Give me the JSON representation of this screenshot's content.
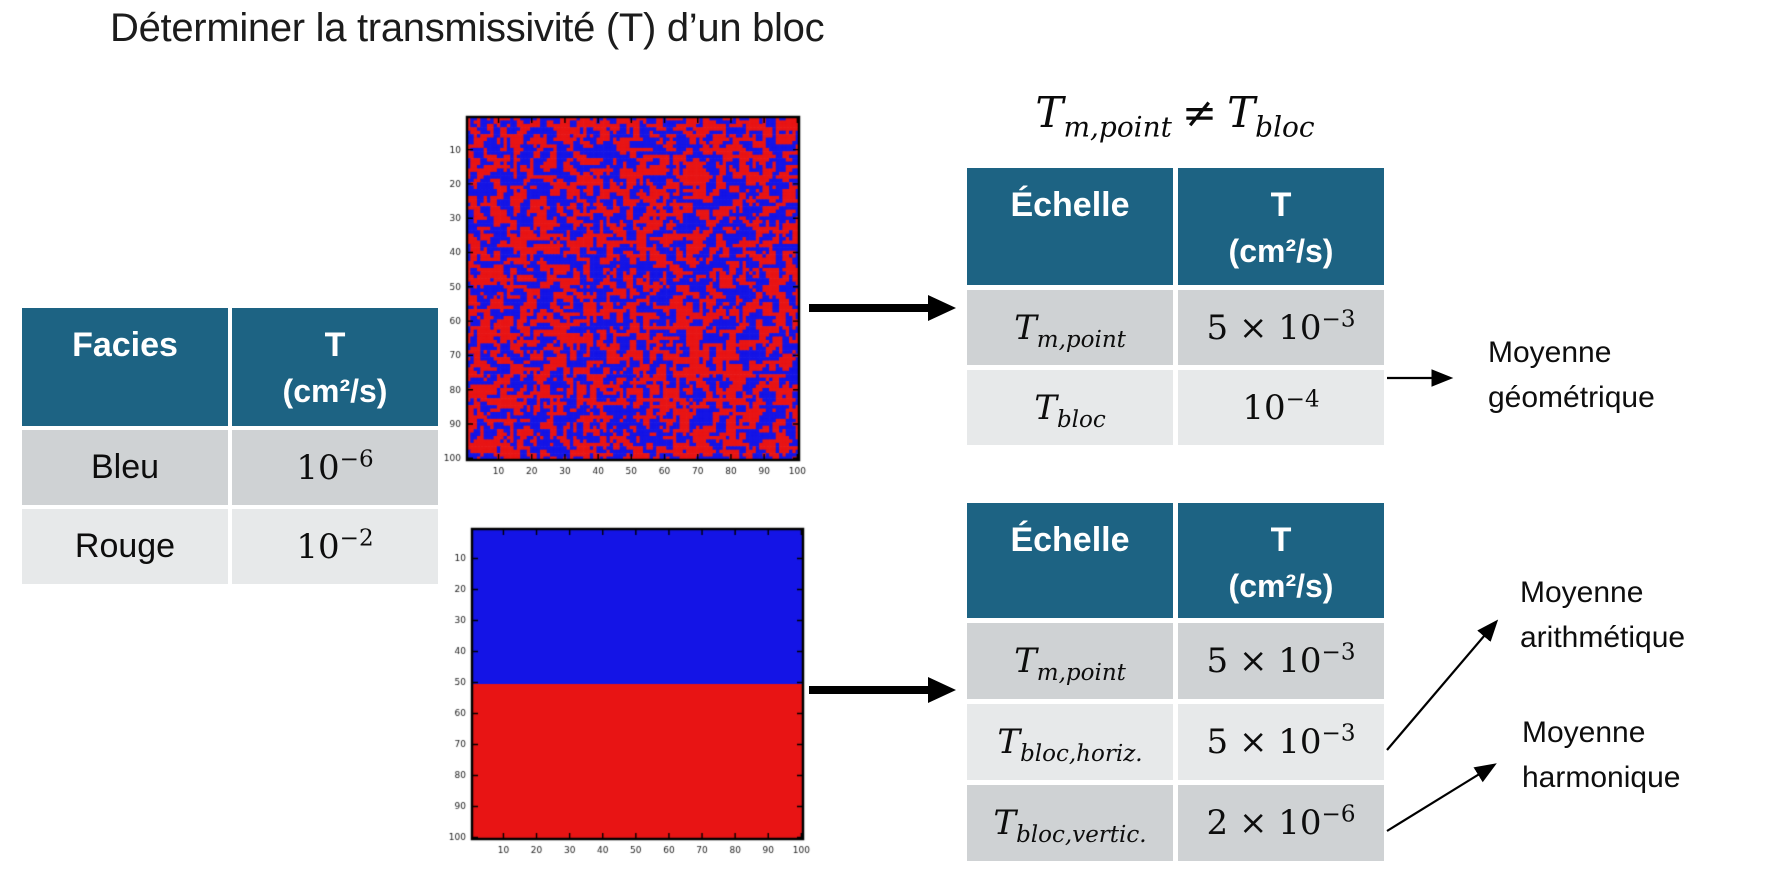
{
  "title": "Déterminer la transmissivité (T) d’un bloc",
  "colors": {
    "table_header_teal": "#1D6383",
    "table_row_dark": "#CFD2D4",
    "table_row_light": "#E7E9EA",
    "facies_bleu": "#1414E6",
    "facies_rouge": "#E81414",
    "arrow_black": "#000000"
  },
  "facies_table": {
    "col1_header": "Facies",
    "col2_header_line1": "T",
    "col2_header_line2": "(cm²/s)",
    "rows": [
      {
        "label": "Bleu",
        "value": {
          "mant": "10",
          "exp": "−6"
        }
      },
      {
        "label": "Rouge",
        "value": {
          "mant": "10",
          "exp": "−2"
        }
      }
    ]
  },
  "equation": {
    "left_base": "T",
    "left_sub": "m,point",
    "op": "≠",
    "right_base": "T",
    "right_sub": "bloc"
  },
  "scale_table_random": {
    "col1_header": "Échelle",
    "col2_header_line1": "T",
    "col2_header_line2": "(cm²/s)",
    "rows": [
      {
        "label_base": "T",
        "label_sub": "m,point",
        "value": {
          "mant": "5 × 10",
          "exp": "−3"
        }
      },
      {
        "label_base": "T",
        "label_sub": "bloc",
        "value": {
          "mant": "10",
          "exp": "−4"
        }
      }
    ]
  },
  "scale_table_layered": {
    "col1_header": "Échelle",
    "col2_header_line1": "T",
    "col2_header_line2": "(cm²/s)",
    "rows": [
      {
        "label_base": "T",
        "label_sub": "m,point",
        "value": {
          "mant": "5 × 10",
          "exp": "−3"
        }
      },
      {
        "label_base": "T",
        "label_sub": "bloc,horiz.",
        "value": {
          "mant": "5 × 10",
          "exp": "−3"
        }
      },
      {
        "label_base": "T",
        "label_sub": "bloc,vertic.",
        "value": {
          "mant": "2 × 10",
          "exp": "−6"
        }
      }
    ]
  },
  "annotations": {
    "geometrique": {
      "line1": "Moyenne",
      "line2": "géométrique"
    },
    "arithmetique": {
      "line1": "Moyenne",
      "line2": "arithmétique"
    },
    "harmonique": {
      "line1": "Moyenne",
      "line2": "harmonique"
    }
  },
  "chart_data": [
    {
      "type": "heatmap",
      "id": "fig-random",
      "description": "Champ de facies binaire aléatoire (bleu/rouge)",
      "grid_rows": 100,
      "grid_cols": 100,
      "x_ticks": [
        10,
        20,
        30,
        40,
        50,
        60,
        70,
        80,
        90,
        100
      ],
      "y_ticks": [
        10,
        20,
        30,
        40,
        50,
        60,
        70,
        80,
        90,
        100
      ],
      "pattern": "random-binary",
      "red_fraction": 0.5,
      "color_bleu": "#1414E6",
      "color_rouge": "#E81414"
    },
    {
      "type": "heatmap",
      "id": "fig-layered",
      "description": "Champ stratifié: rangées 1–50 bleu, 51–100 rouge",
      "grid_rows": 100,
      "grid_cols": 100,
      "x_ticks": [
        10,
        20,
        30,
        40,
        50,
        60,
        70,
        80,
        90,
        100
      ],
      "y_ticks": [
        10,
        20,
        30,
        40,
        50,
        60,
        70,
        80,
        90,
        100
      ],
      "pattern": "two-layers",
      "split_row": 50,
      "top_color": "bleu",
      "bottom_color": "rouge",
      "color_bleu": "#1414E6",
      "color_rouge": "#E81414"
    }
  ]
}
